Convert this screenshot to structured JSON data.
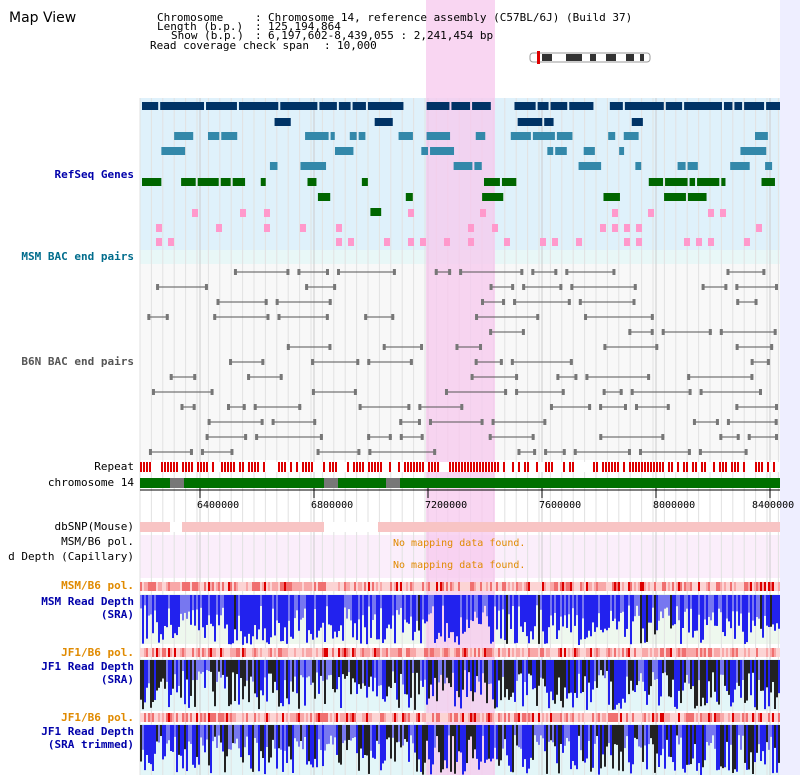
{
  "page": {
    "title": "Map View"
  },
  "info": {
    "chromosome_label": "Chromosome",
    "chromosome_value": "Chromosome 14, reference assembly (C57BL/6J) (Build 37)",
    "length_label": "Length (b.p.)",
    "length_value": "125,194,864",
    "show_label": "Show (b.p.)",
    "show_value": "6,197,602-8,439,055 : 2,241,454 bp",
    "coverage_label": "Read coverage check span",
    "coverage_value": "10,000"
  },
  "tracks": {
    "refseq": "RefSeq Genes",
    "msm_bac": "MSM BAC end pairs",
    "b6n_bac": "B6N BAC end pairs",
    "repeat": "Repeat",
    "chromosome": "chromosome 14",
    "dbsnp": "dbSNP(Mouse)",
    "msm_b6_pol_1": "MSM/B6 pol.",
    "read_depth_cap": "d Depth (Capillary)",
    "msm_b6_pol_2": "MSM/B6 pol.",
    "msm_read_depth_1": "MSM Read Depth",
    "msm_read_depth_2": "(SRA)",
    "jf1_b6_pol_1": "JF1/B6 pol.",
    "jf1_read_depth_1": "JF1 Read Depth",
    "jf1_read_depth_2": "(SRA)",
    "jf1_b6_pol_2": "JF1/B6 pol.",
    "jf1_read_depth_trim_1": "JF1 Read Depth",
    "jf1_read_depth_trim_2": "(SRA trimmed)"
  },
  "messages": {
    "no_mapping_1": "No mapping data found.",
    "no_mapping_2": "No mapping data found."
  },
  "axis": {
    "ticks": [
      "6400000",
      "6800000",
      "7200000",
      "7600000",
      "8000000",
      "8400000"
    ]
  },
  "colors": {
    "refseq_bg": "#dff1fb",
    "highlight": "#f7c8ee",
    "chromosome": "#007000",
    "repeat": "#dd0000",
    "dbsnp": "#f8c4c4",
    "depth_blue": "#2222ee",
    "depth_black": "#222222",
    "gene_navy": "#003366",
    "gene_teal": "#3388aa",
    "gene_green": "#006600",
    "bac_pink": "#ff99cc"
  }
}
